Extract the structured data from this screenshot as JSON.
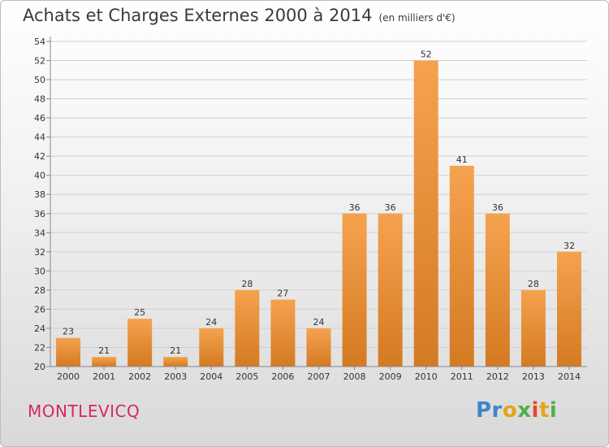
{
  "header": {
    "title": "Achats et Charges Externes 2000 à 2014",
    "subtitle": "(en milliers d'€)"
  },
  "footer": {
    "commune": "MONTLEVICQ",
    "logo_text": "Proxiti"
  },
  "colors": {
    "bar_light": "#f5a24f",
    "bar_dark": "#d47a22",
    "commune": "#d7256a"
  },
  "chart_data": {
    "type": "bar",
    "title": "Achats et Charges Externes 2000 à 2014",
    "subtitle": "(en milliers d'€)",
    "categories": [
      "2000",
      "2001",
      "2002",
      "2003",
      "2004",
      "2005",
      "2006",
      "2007",
      "2008",
      "2009",
      "2010",
      "2011",
      "2012",
      "2013",
      "2014"
    ],
    "values": [
      23,
      21,
      25,
      21,
      24,
      28,
      27,
      24,
      36,
      36,
      52,
      41,
      36,
      28,
      32
    ],
    "ylim": [
      20,
      54
    ],
    "yticks": [
      20,
      22,
      24,
      26,
      28,
      30,
      32,
      34,
      36,
      38,
      40,
      42,
      44,
      46,
      48,
      50,
      52,
      54
    ],
    "grid": true,
    "xlabel": "",
    "ylabel": ""
  }
}
